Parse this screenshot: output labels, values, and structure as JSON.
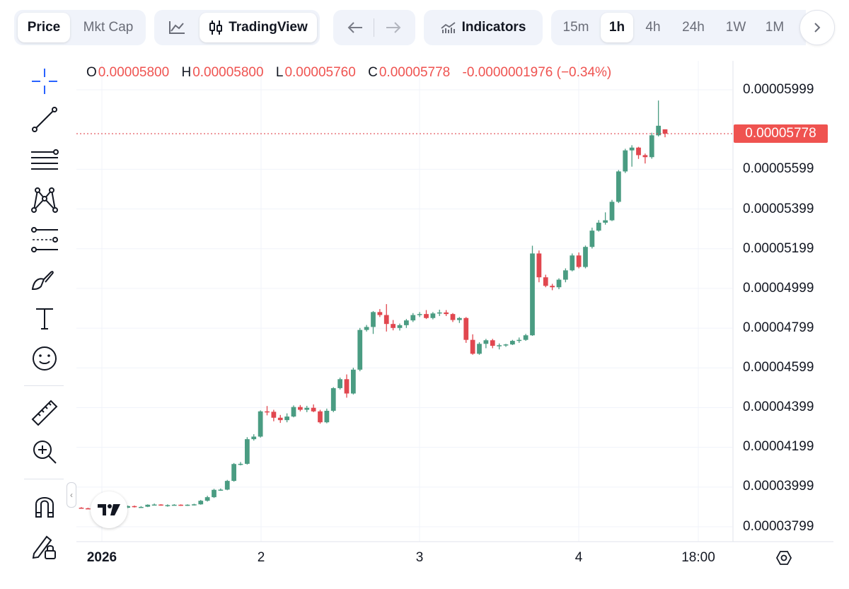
{
  "toolbar": {
    "price_label": "Price",
    "mktcap_label": "Mkt Cap",
    "tradingview_label": "TradingView",
    "indicators_label": "Indicators",
    "intervals": [
      "15m",
      "1h",
      "4h",
      "24h",
      "1W",
      "1M"
    ],
    "active_interval": "1h",
    "active_chart_mode": "Price"
  },
  "legend": {
    "o_key": "O",
    "o_val": "0.00005800",
    "h_key": "H",
    "h_val": "0.00005800",
    "l_key": "L",
    "l_val": "0.00005760",
    "c_key": "C",
    "c_val": "0.00005778",
    "change": "-0.0000001976 (−0.34%)"
  },
  "last_price": "0.00005778",
  "colors": {
    "up": "#4a9c82",
    "down": "#e1474f",
    "price_line": "#e1474f",
    "grid": "#f0f3fa"
  },
  "chart_data": {
    "type": "candlestick",
    "x_ticks": [
      "2026",
      "2",
      "3",
      "4",
      "18:00"
    ],
    "y_ticks": [
      "0.00005999",
      "0.00005599",
      "0.00005399",
      "0.00005199",
      "0.00004999",
      "0.00004799",
      "0.00004599",
      "0.00004399",
      "0.00004199",
      "0.00003999",
      "0.00003799"
    ],
    "ylim": [
      3.75e-05,
      6.15e-05
    ],
    "last_price": 5.778e-05,
    "candles_ohlc_e8": [
      [
        3895,
        3898,
        3890,
        3893
      ],
      [
        3892,
        3895,
        3888,
        3890
      ],
      [
        3889,
        3892,
        3886,
        3888
      ],
      [
        3890,
        3893,
        3886,
        3889
      ],
      [
        3893,
        3895,
        3890,
        3892
      ],
      [
        3893,
        3896,
        3889,
        3894
      ],
      [
        3894,
        3898,
        3890,
        3895
      ],
      [
        3895,
        3906,
        3893,
        3903
      ],
      [
        3903,
        3906,
        3896,
        3898
      ],
      [
        3898,
        3903,
        3895,
        3899
      ],
      [
        3900,
        3912,
        3898,
        3910
      ],
      [
        3910,
        3916,
        3906,
        3911
      ],
      [
        3911,
        3913,
        3905,
        3906
      ],
      [
        3906,
        3912,
        3900,
        3908
      ],
      [
        3908,
        3913,
        3906,
        3910
      ],
      [
        3910,
        3912,
        3904,
        3908
      ],
      [
        3908,
        3912,
        3904,
        3910
      ],
      [
        3910,
        3915,
        3906,
        3912
      ],
      [
        3912,
        3934,
        3910,
        3930
      ],
      [
        3930,
        3955,
        3926,
        3948
      ],
      [
        3948,
        3990,
        3944,
        3985
      ],
      [
        3985,
        3992,
        3980,
        3986
      ],
      [
        3986,
        4035,
        3983,
        4030
      ],
      [
        4030,
        4120,
        4026,
        4115
      ],
      [
        4115,
        4125,
        4108,
        4116
      ],
      [
        4116,
        4250,
        4112,
        4240
      ],
      [
        4240,
        4265,
        4233,
        4253
      ],
      [
        4253,
        4385,
        4248,
        4380
      ],
      [
        4380,
        4407,
        4360,
        4378
      ],
      [
        4378,
        4388,
        4330,
        4348
      ],
      [
        4348,
        4362,
        4322,
        4336
      ],
      [
        4336,
        4370,
        4325,
        4354
      ],
      [
        4354,
        4410,
        4350,
        4402
      ],
      [
        4402,
        4412,
        4380,
        4388
      ],
      [
        4388,
        4408,
        4376,
        4398
      ],
      [
        4398,
        4415,
        4376,
        4380
      ],
      [
        4380,
        4388,
        4318,
        4325
      ],
      [
        4325,
        4394,
        4320,
        4383
      ],
      [
        4383,
        4502,
        4376,
        4497
      ],
      [
        4497,
        4550,
        4490,
        4542
      ],
      [
        4542,
        4566,
        4449,
        4470
      ],
      [
        4470,
        4600,
        4465,
        4590
      ],
      [
        4590,
        4800,
        4582,
        4790
      ],
      [
        4790,
        4815,
        4782,
        4805
      ],
      [
        4805,
        4885,
        4770,
        4880
      ],
      [
        4880,
        4895,
        4855,
        4865
      ],
      [
        4865,
        4920,
        4782,
        4820
      ],
      [
        4820,
        4840,
        4788,
        4800
      ],
      [
        4800,
        4822,
        4787,
        4814
      ],
      [
        4814,
        4845,
        4800,
        4838
      ],
      [
        4838,
        4875,
        4830,
        4865
      ],
      [
        4865,
        4880,
        4855,
        4870
      ],
      [
        4870,
        4890,
        4845,
        4850
      ],
      [
        4850,
        4880,
        4843,
        4873
      ],
      [
        4873,
        4892,
        4860,
        4878
      ],
      [
        4878,
        4890,
        4860,
        4870
      ],
      [
        4870,
        4875,
        4830,
        4840
      ],
      [
        4840,
        4855,
        4825,
        4850
      ],
      [
        4850,
        4855,
        4725,
        4740
      ],
      [
        4740,
        4768,
        4665,
        4670
      ],
      [
        4670,
        4728,
        4665,
        4720
      ],
      [
        4720,
        4745,
        4698,
        4738
      ],
      [
        4738,
        4745,
        4698,
        4710
      ],
      [
        4710,
        4722,
        4692,
        4713
      ],
      [
        4713,
        4720,
        4705,
        4717
      ],
      [
        4717,
        4740,
        4714,
        4735
      ],
      [
        4735,
        4752,
        4725,
        4740
      ],
      [
        4740,
        4770,
        4735,
        4763
      ],
      [
        4763,
        5214,
        4760,
        5175
      ],
      [
        5175,
        5190,
        5030,
        5055
      ],
      [
        5055,
        5068,
        5005,
        5012
      ],
      [
        5012,
        5022,
        4990,
        5005
      ],
      [
        5005,
        5050,
        4995,
        5043
      ],
      [
        5043,
        5100,
        5030,
        5090
      ],
      [
        5090,
        5175,
        5085,
        5165
      ],
      [
        5165,
        5180,
        5100,
        5107
      ],
      [
        5107,
        5215,
        5100,
        5208
      ],
      [
        5208,
        5305,
        5200,
        5290
      ],
      [
        5290,
        5343,
        5285,
        5330
      ],
      [
        5330,
        5382,
        5320,
        5342
      ],
      [
        5342,
        5445,
        5338,
        5435
      ],
      [
        5435,
        5595,
        5429,
        5588
      ],
      [
        5588,
        5702,
        5580,
        5694
      ],
      [
        5694,
        5720,
        5612,
        5708
      ],
      [
        5708,
        5712,
        5651,
        5670
      ],
      [
        5670,
        5678,
        5628,
        5660
      ],
      [
        5660,
        5783,
        5652,
        5770
      ],
      [
        5770,
        5945,
        5764,
        5818
      ],
      [
        5800,
        5800,
        5760,
        5778
      ]
    ]
  }
}
